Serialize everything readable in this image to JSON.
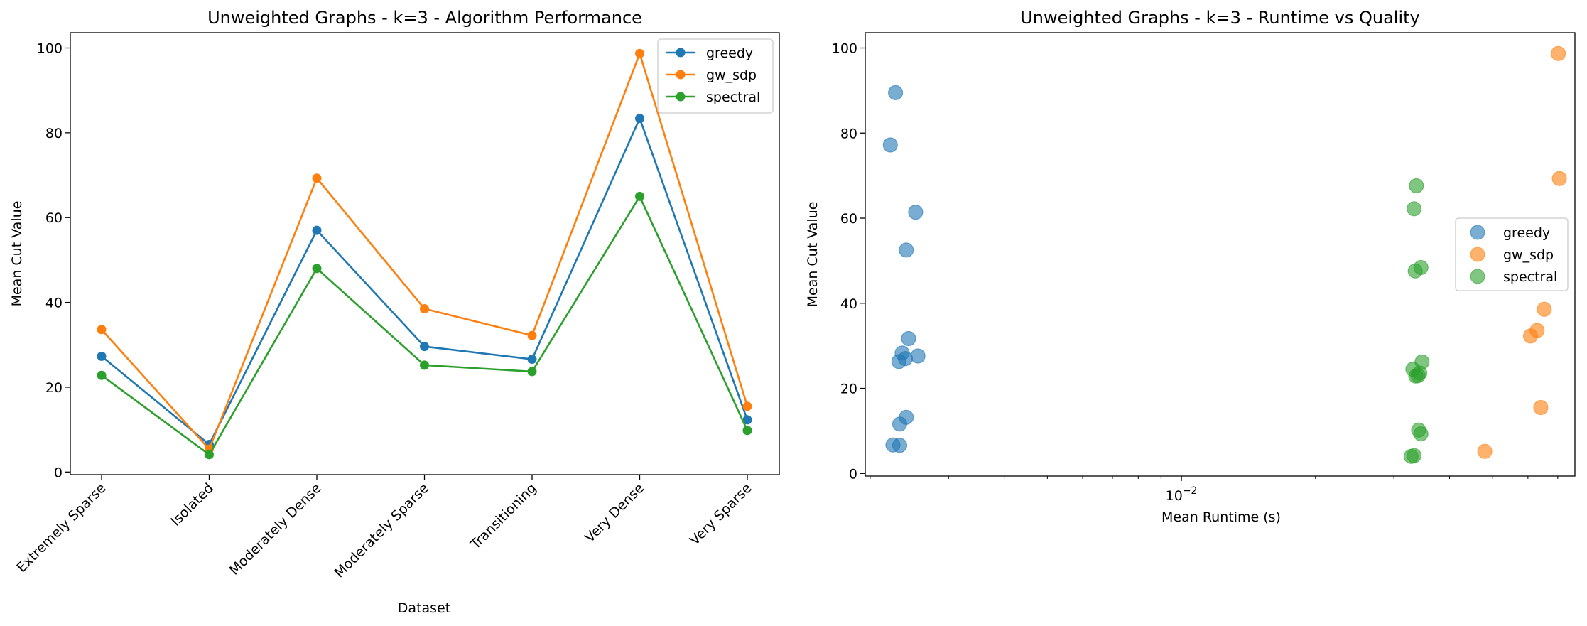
{
  "chart_data": [
    {
      "type": "line",
      "title": "Unweighted Graphs - k=3 - Algorithm Performance",
      "xlabel": "Dataset",
      "ylabel": "Mean Cut Value",
      "categories": [
        "Extremely Sparse",
        "Isolated",
        "Moderately Dense",
        "Moderately Sparse",
        "Transitioning",
        "Very Dense",
        "Very Sparse"
      ],
      "ylim": [
        0,
        100
      ],
      "yticks": [
        0,
        20,
        40,
        60,
        80,
        100
      ],
      "ytick_labels": [
        "0",
        "20",
        "40",
        "60",
        "80",
        "100"
      ],
      "legend_position": "top-right",
      "grid": false,
      "series": [
        {
          "name": "greedy",
          "color": "#1f77b4",
          "values": [
            27.3,
            6.5,
            57.0,
            29.6,
            26.6,
            83.4,
            12.3
          ]
        },
        {
          "name": "gw_sdp",
          "color": "#ff7f0e",
          "values": [
            33.6,
            5.4,
            69.3,
            38.5,
            32.2,
            98.7,
            15.5
          ]
        },
        {
          "name": "spectral",
          "color": "#2ca02c",
          "values": [
            22.8,
            4.1,
            48.0,
            25.2,
            23.7,
            65.0,
            9.8
          ]
        }
      ]
    },
    {
      "type": "scatter",
      "title": "Unweighted Graphs - k=3 - Runtime vs Quality",
      "xlabel": "Mean Runtime (s)",
      "ylabel": "Mean Cut Value",
      "xscale": "log",
      "xlim": [
        0.00195,
        0.0765
      ],
      "ylim": [
        0,
        100
      ],
      "yticks": [
        0,
        20,
        40,
        60,
        80,
        100
      ],
      "ytick_labels": [
        "0",
        "20",
        "40",
        "60",
        "80",
        "100"
      ],
      "xtick_major": 0.01,
      "xtick_label": "10",
      "xtick_label_exp": "−2",
      "legend_position": "center-right",
      "grid": false,
      "series": [
        {
          "name": "greedy",
          "color": "#1f77b4",
          "points": [
            [
              0.00222,
              77.2
            ],
            [
              0.00228,
              89.5
            ],
            [
              0.00253,
              61.4
            ],
            [
              0.00241,
              52.5
            ],
            [
              0.00244,
              31.7
            ],
            [
              0.00236,
              28.3
            ],
            [
              0.00232,
              26.3
            ],
            [
              0.0024,
              27.0
            ],
            [
              0.00256,
              27.6
            ],
            [
              0.00241,
              13.2
            ],
            [
              0.00233,
              11.6
            ],
            [
              0.00225,
              6.7
            ],
            [
              0.00233,
              6.6
            ]
          ]
        },
        {
          "name": "gw_sdp",
          "color": "#ff7f0e",
          "points": [
            [
              0.0702,
              98.7
            ],
            [
              0.0706,
              69.3
            ],
            [
              0.0653,
              38.6
            ],
            [
              0.0629,
              33.6
            ],
            [
              0.0608,
              32.3
            ],
            [
              0.0641,
              15.5
            ],
            [
              0.048,
              5.2
            ]
          ]
        },
        {
          "name": "spectral",
          "color": "#2ca02c",
          "points": [
            [
              0.0337,
              67.6
            ],
            [
              0.0333,
              62.2
            ],
            [
              0.0345,
              48.4
            ],
            [
              0.0335,
              47.6
            ],
            [
              0.0347,
              26.2
            ],
            [
              0.0331,
              24.5
            ],
            [
              0.0343,
              23.6
            ],
            [
              0.0336,
              22.9
            ],
            [
              0.034,
              23.0
            ],
            [
              0.0341,
              10.2
            ],
            [
              0.0345,
              9.3
            ],
            [
              0.0333,
              4.2
            ],
            [
              0.0328,
              4.0
            ]
          ]
        }
      ]
    }
  ]
}
